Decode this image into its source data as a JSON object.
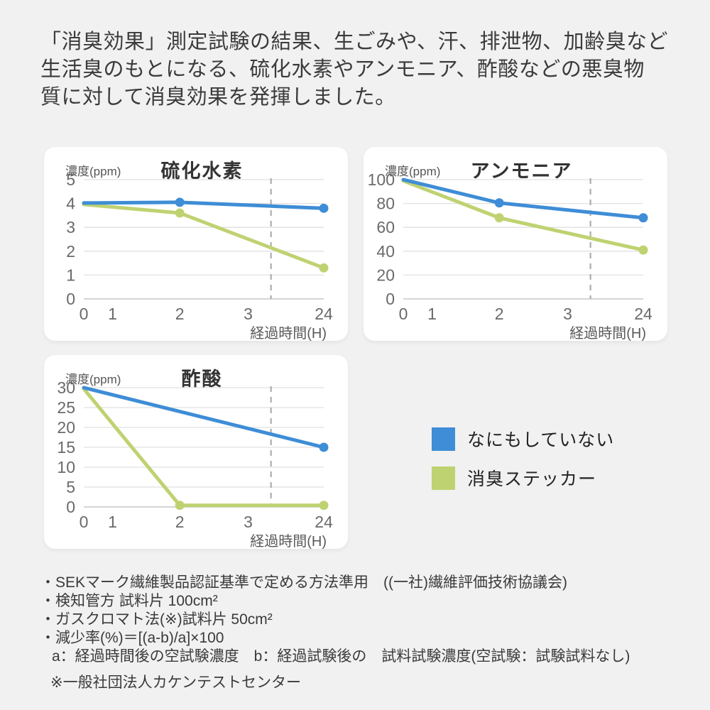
{
  "page": {
    "background_color": "#f1f1f1",
    "panel_color": "#ffffff"
  },
  "header": {
    "lines": [
      "「消臭効果」測定試験の結果、生ごみや、汗、排泄物、加齢臭など",
      "生活臭のもとになる、硫化水素やアンモニア、酢酸などの悪臭物",
      "質に対して消臭効果を発揮しました。"
    ]
  },
  "chart_data": [
    {
      "type": "line",
      "title": "硫化水素",
      "unit_label": "濃度(ppm)",
      "x_axis_label": "経過時間(H)",
      "x_ticks": [
        0,
        1,
        2,
        3,
        24
      ],
      "x_tick_positions": [
        0,
        0.12,
        0.4,
        0.685,
        1
      ],
      "axis_break_position": 0.78,
      "y_ticks": [
        0,
        1,
        2,
        3,
        4,
        5
      ],
      "y_max": 5,
      "grid": true,
      "series": [
        {
          "name": "なにもしていない",
          "color": "#3e8dd6",
          "points": [
            {
              "x": 0,
              "y": 4.02,
              "marker": false
            },
            {
              "x": 2,
              "y": 4.05,
              "marker": true
            },
            {
              "x": 24,
              "y": 3.8,
              "marker": true
            }
          ]
        },
        {
          "name": "消臭ステッカー",
          "color": "#bfd271",
          "points": [
            {
              "x": 0,
              "y": 3.96,
              "marker": false
            },
            {
              "x": 2,
              "y": 3.6,
              "marker": true
            },
            {
              "x": 24,
              "y": 1.3,
              "marker": true
            }
          ]
        }
      ]
    },
    {
      "type": "line",
      "title": "アンモニア",
      "unit_label": "濃度(ppm)",
      "x_axis_label": "経過時間(H)",
      "x_ticks": [
        0,
        1,
        2,
        3,
        24
      ],
      "x_tick_positions": [
        0,
        0.12,
        0.4,
        0.685,
        1
      ],
      "axis_break_position": 0.78,
      "y_ticks": [
        0,
        20,
        40,
        60,
        80,
        100
      ],
      "y_max": 100,
      "grid": true,
      "series": [
        {
          "name": "なにもしていない",
          "color": "#3e8dd6",
          "points": [
            {
              "x": 0,
              "y": 100,
              "marker": false
            },
            {
              "x": 2,
              "y": 80.5,
              "marker": true
            },
            {
              "x": 24,
              "y": 68,
              "marker": true
            }
          ]
        },
        {
          "name": "消臭ステッカー",
          "color": "#bfd271",
          "points": [
            {
              "x": 0,
              "y": 99,
              "marker": false
            },
            {
              "x": 2,
              "y": 68,
              "marker": true
            },
            {
              "x": 24,
              "y": 41,
              "marker": true
            }
          ]
        }
      ]
    },
    {
      "type": "line",
      "title": "酢酸",
      "unit_label": "濃度(ppm)",
      "x_axis_label": "経過時間(H)",
      "x_ticks": [
        0,
        1,
        2,
        3,
        24
      ],
      "x_tick_positions": [
        0,
        0.12,
        0.4,
        0.685,
        1
      ],
      "axis_break_position": 0.78,
      "y_ticks": [
        0,
        5,
        10,
        15,
        20,
        25,
        30
      ],
      "y_max": 30,
      "grid": true,
      "series": [
        {
          "name": "なにもしていない",
          "color": "#3e8dd6",
          "points": [
            {
              "x": 0,
              "y": 30,
              "marker": false
            },
            {
              "x": 24,
              "y": 15,
              "marker": true
            }
          ]
        },
        {
          "name": "消臭ステッカー",
          "color": "#bfd271",
          "points": [
            {
              "x": 0,
              "y": 29.7,
              "marker": false
            },
            {
              "x": 2,
              "y": 0.4,
              "marker": true
            },
            {
              "x": 24,
              "y": 0.4,
              "marker": true
            }
          ]
        }
      ]
    }
  ],
  "legend": {
    "items": [
      {
        "label": "なにもしていない",
        "color": "#3e8dd6"
      },
      {
        "label": "消臭ステッカー",
        "color": "#bfd271"
      }
    ]
  },
  "footnotes": {
    "lines": [
      "・SEKマーク繊維製品認証基準で定める方法準用　((一社)繊維評価技術協議会)",
      "・検知管方 試料片 100cm²",
      "・ガスクロマト法(※)試料片 50cm²",
      "・減少率(%)＝[(a-b)/a]×100",
      "a：経過時間後の空試験濃度　b：経過試験後の　試料試験濃度(空試験：試験試料なし)"
    ],
    "source": "※一般社団法人カケンテストセンター"
  },
  "style_colors": {
    "grid_line": "#e1e1e1",
    "axis_line": "#c7c7c7",
    "break_line": "#adadad",
    "tick_text": "#6a6a6a",
    "caption_text": "#5a5a5a"
  }
}
